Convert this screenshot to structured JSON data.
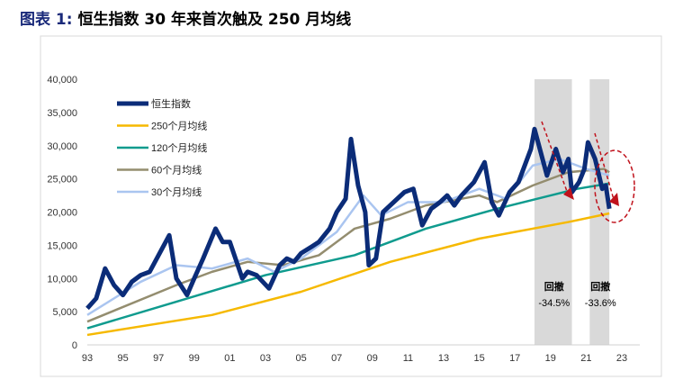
{
  "title_label": "图表 1:",
  "title_text": "恒生指数 30 年来首次触及 250 月均线",
  "chart_data": {
    "type": "line",
    "title": "恒生指数 30 年来首次触及 250 月均线",
    "xlim": [
      1993,
      2023
    ],
    "ylim": [
      0,
      40000
    ],
    "x_ticks": [
      1993,
      1995,
      1997,
      1999,
      2001,
      2003,
      2005,
      2007,
      2009,
      2011,
      2013,
      2015,
      2017,
      2019,
      2021,
      2023
    ],
    "x_tick_labels": [
      "93",
      "95",
      "97",
      "99",
      "01",
      "03",
      "05",
      "07",
      "09",
      "11",
      "13",
      "15",
      "17",
      "19",
      "21",
      "23"
    ],
    "y_ticks": [
      0,
      5000,
      10000,
      15000,
      20000,
      25000,
      30000,
      35000,
      40000
    ],
    "y_tick_labels": [
      "0",
      "5,000",
      "10,000",
      "15,000",
      "20,000",
      "25,000",
      "30,000",
      "35,000",
      "40,000"
    ],
    "grid": false,
    "legend_placement": "top-left",
    "series": [
      {
        "name": "恒生指数",
        "color": "#0b2c78",
        "x": [
          1993,
          1993.5,
          1994,
          1994.5,
          1995,
          1995.5,
          1996,
          1996.5,
          1997,
          1997.6,
          1998,
          1998.6,
          1999,
          1999.5,
          2000.2,
          2000.6,
          2001,
          2001.7,
          2002,
          2002.5,
          2003.2,
          2003.8,
          2004.2,
          2004.6,
          2005,
          2005.6,
          2006,
          2006.6,
          2007,
          2007.5,
          2007.8,
          2008.2,
          2008.6,
          2008.8,
          2009.2,
          2009.6,
          2010,
          2010.8,
          2011.3,
          2011.8,
          2012.3,
          2012.8,
          2013.2,
          2013.6,
          2014,
          2014.7,
          2015.3,
          2015.7,
          2016.1,
          2016.7,
          2017.2,
          2017.9,
          2018.1,
          2018.8,
          2019.3,
          2019.7,
          2020,
          2020.2,
          2020.6,
          2020.9,
          2021.1,
          2021.5,
          2021.9,
          2022.1,
          2022.3
        ],
        "y": [
          5500,
          7000,
          11500,
          9000,
          7500,
          9500,
          10500,
          11000,
          13500,
          16500,
          10000,
          7500,
          10000,
          13000,
          17500,
          15500,
          15500,
          10000,
          11000,
          10500,
          8500,
          12000,
          13000,
          12500,
          13800,
          14800,
          15500,
          17500,
          20000,
          22000,
          31000,
          24000,
          20000,
          12000,
          13000,
          20000,
          21000,
          23000,
          23500,
          18000,
          20500,
          21500,
          22500,
          21000,
          22500,
          24500,
          27500,
          21500,
          19500,
          23000,
          24500,
          29500,
          32500,
          25500,
          29500,
          26000,
          28000,
          23000,
          24500,
          26500,
          30500,
          28000,
          23500,
          24000,
          20500
        ]
      },
      {
        "name": "250个月均线",
        "color": "#f6b900",
        "x": [
          1993,
          2000,
          2005,
          2010,
          2015,
          2020,
          2022.3
        ],
        "y": [
          1500,
          4500,
          8000,
          12500,
          16000,
          18500,
          19800
        ]
      },
      {
        "name": "120个月均线",
        "color": "#0f9b8e",
        "x": [
          1993,
          1998,
          2003,
          2008,
          2012,
          2016,
          2019,
          2020.5,
          2022.3
        ],
        "y": [
          2500,
          6500,
          10500,
          13500,
          17500,
          20500,
          22500,
          23500,
          24300
        ]
      },
      {
        "name": "60个月均线",
        "color": "#948d6f",
        "x": [
          1993,
          1998,
          2000,
          2002,
          2004,
          2006,
          2008,
          2010,
          2012,
          2015,
          2016,
          2018,
          2020,
          2022,
          2022.3
        ],
        "y": [
          3500,
          9000,
          11000,
          12500,
          12000,
          13500,
          17500,
          19000,
          21000,
          22500,
          21500,
          24000,
          26000,
          26500,
          26000
        ]
      },
      {
        "name": "30个月均线",
        "color": "#aac5f0",
        "x": [
          1993,
          1996,
          1998,
          2000,
          2002,
          2003.5,
          2005,
          2007,
          2008.5,
          2009.5,
          2011,
          2013,
          2015,
          2016.5,
          2018,
          2019.5,
          2021,
          2022.3
        ],
        "y": [
          4500,
          9500,
          12000,
          11500,
          13000,
          11000,
          13000,
          17000,
          22500,
          19500,
          21500,
          21500,
          23500,
          22000,
          27000,
          28000,
          26500,
          25500
        ]
      }
    ],
    "shaded_periods": [
      [
        2018.1,
        2020.2
      ],
      [
        2021.2,
        2022.3
      ]
    ],
    "annotations": [
      {
        "label": "回撤",
        "value": "-34.5%",
        "x": 2019.2
      },
      {
        "label": "回撤",
        "value": "-33.6%",
        "x": 2021.8
      }
    ]
  }
}
